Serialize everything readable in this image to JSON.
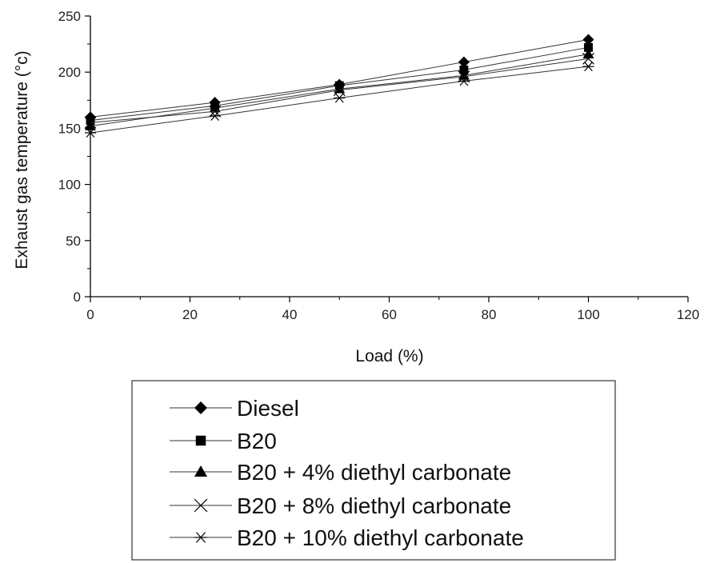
{
  "chart_data": {
    "type": "line",
    "xlabel": "Load (%)",
    "ylabel": "Exhaust gas temperature (°c)",
    "xlim": [
      0,
      120
    ],
    "ylim": [
      0,
      250
    ],
    "xticks": [
      0,
      20,
      40,
      60,
      80,
      100,
      120
    ],
    "yticks": [
      0,
      50,
      100,
      150,
      200,
      250
    ],
    "x": [
      0,
      25,
      50,
      75,
      100
    ],
    "grid": false,
    "legend_position": "bottom",
    "series": [
      {
        "name": "Diesel",
        "marker": "diamond",
        "values": [
          160,
          173,
          189,
          209,
          229
        ]
      },
      {
        "name": "B20",
        "marker": "square",
        "values": [
          157,
          170,
          188,
          202,
          222
        ]
      },
      {
        "name": "B20 + 4% diethyl carbonate",
        "marker": "triangle",
        "values": [
          152,
          168,
          185,
          197,
          216
        ]
      },
      {
        "name": "B20 + 8% diethyl carbonate",
        "marker": "x",
        "values": [
          155,
          165,
          184,
          196,
          212
        ]
      },
      {
        "name": "B20 + 10% diethyl carbonate",
        "marker": "asterisk",
        "values": [
          146,
          161,
          177,
          192,
          205
        ]
      }
    ]
  }
}
